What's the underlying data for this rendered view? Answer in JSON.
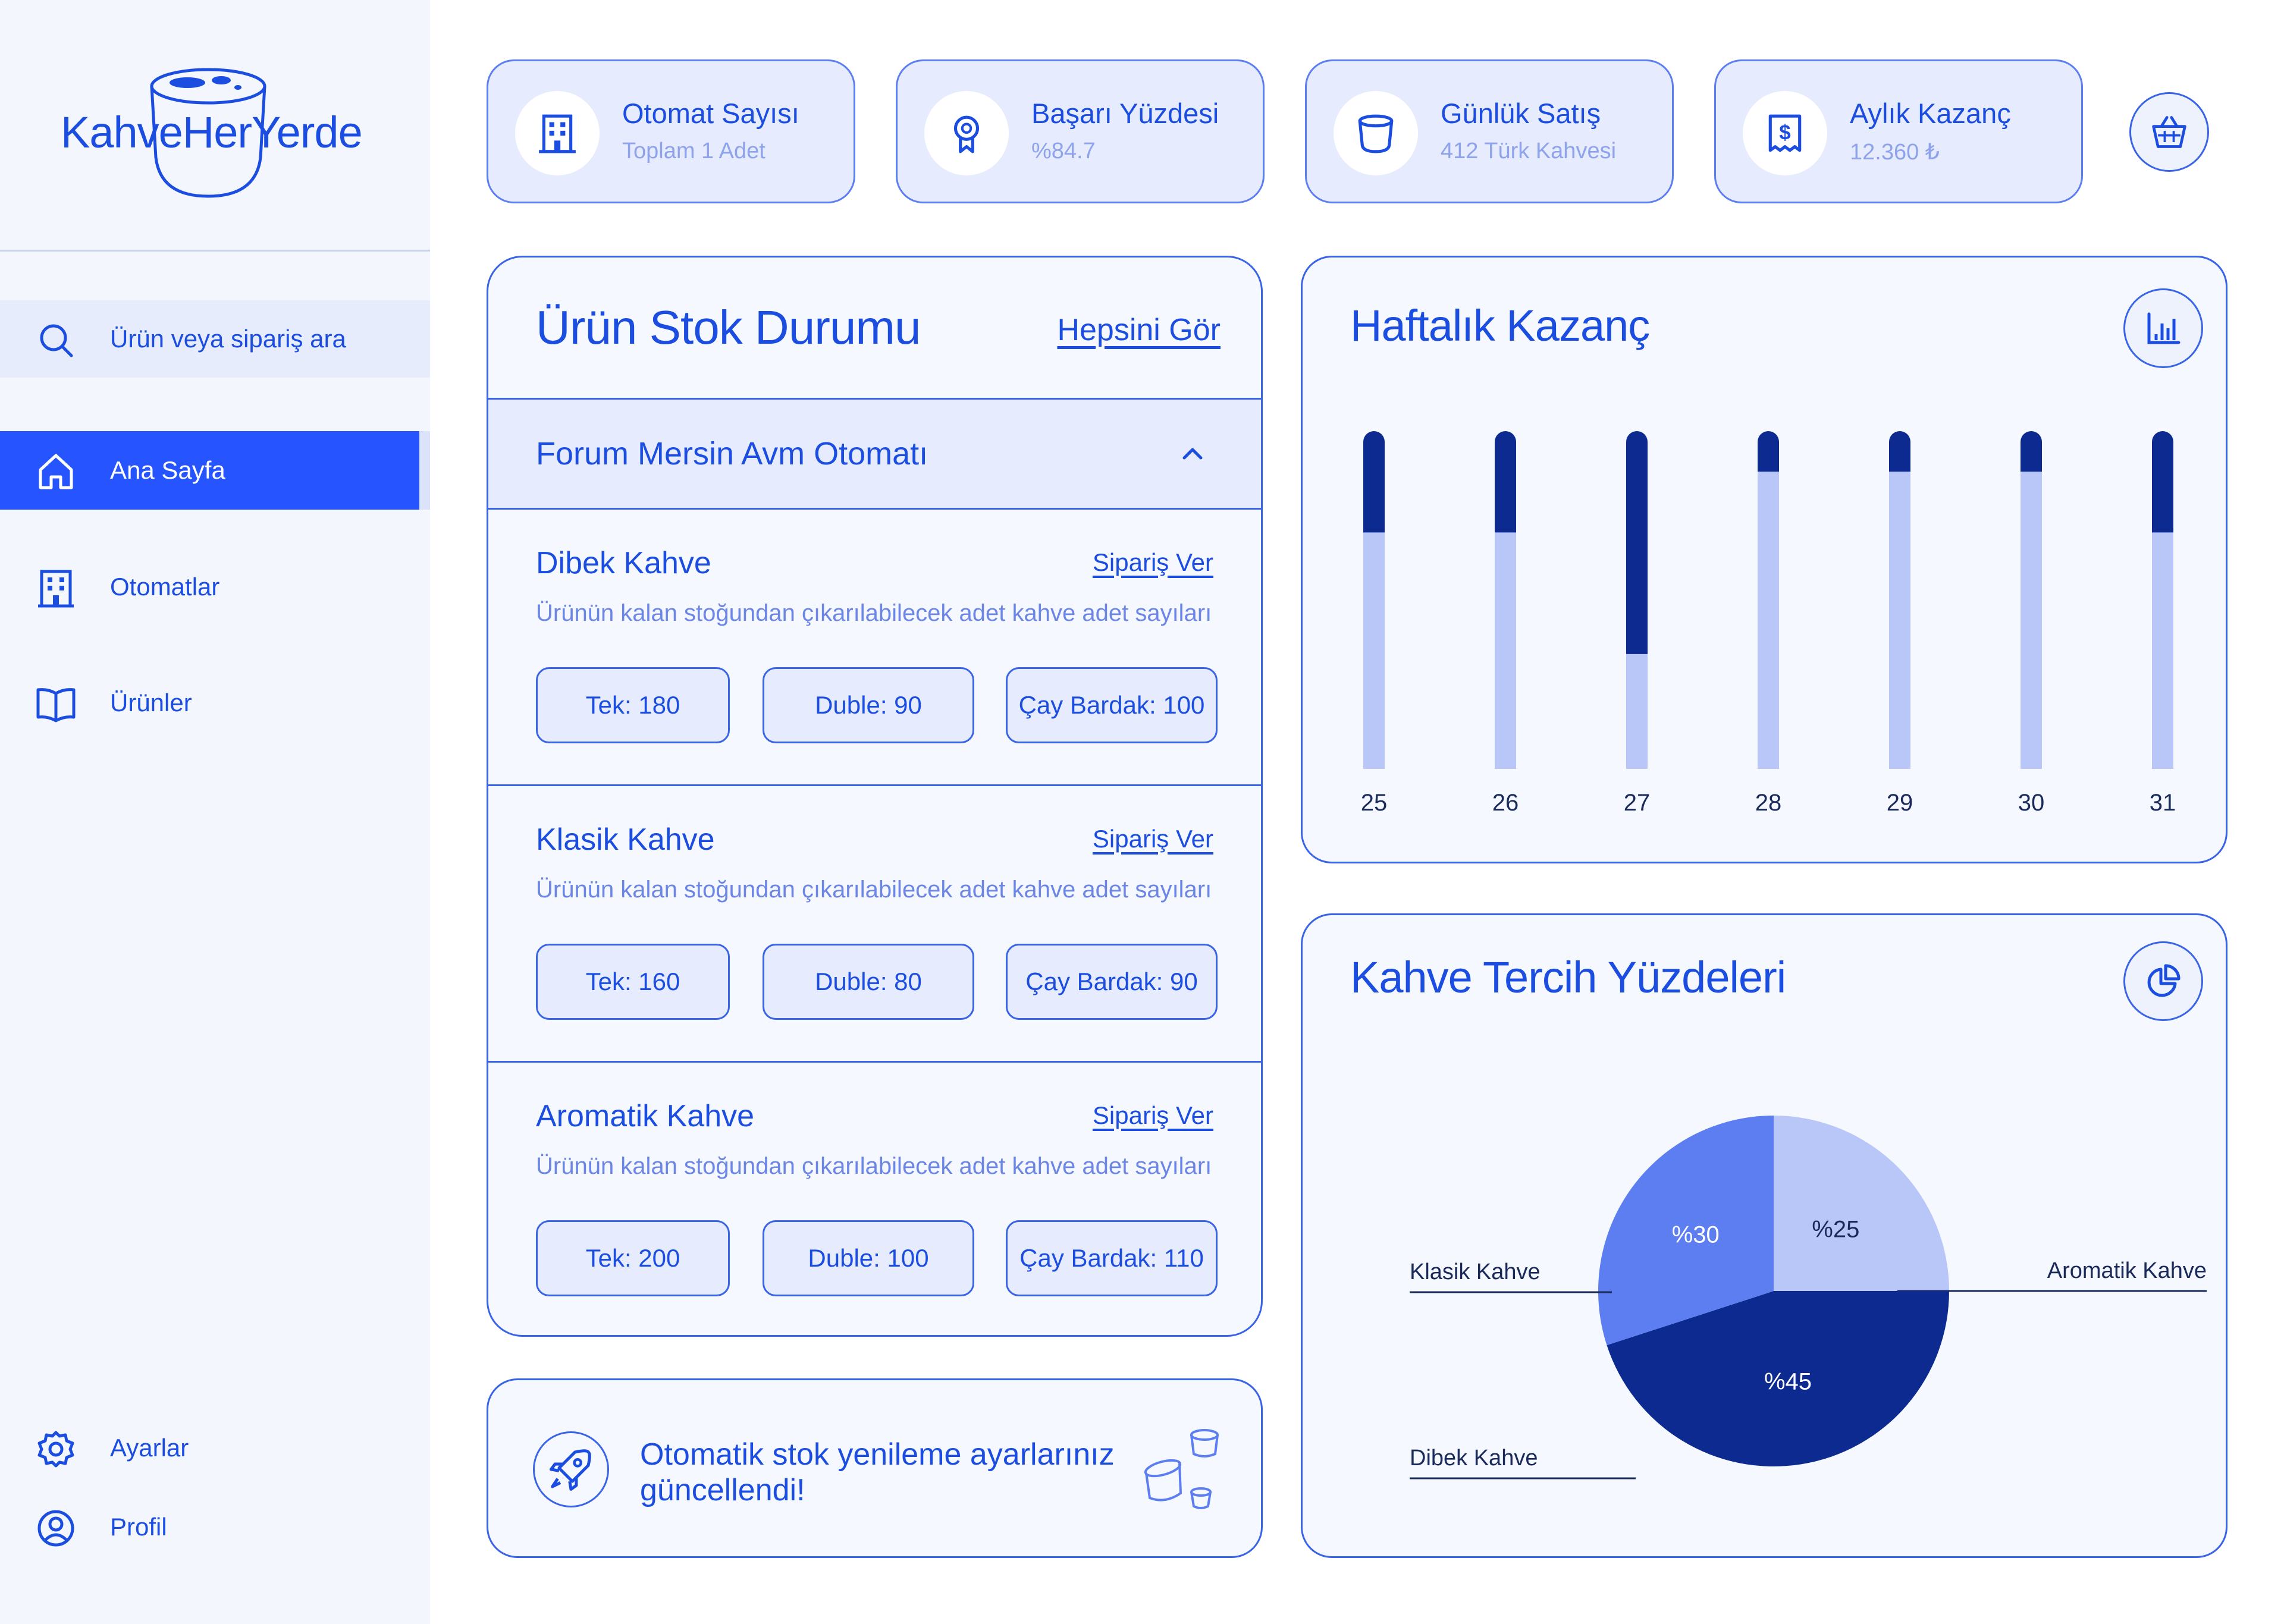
{
  "brand": {
    "logo_text": "KahveHerYerde"
  },
  "sidebar": {
    "search_placeholder": "Ürün veya sipariş ara",
    "nav": [
      {
        "label": "Ana Sayfa",
        "icon": "home-icon",
        "active": true
      },
      {
        "label": "Otomatlar",
        "icon": "building-icon",
        "active": false
      },
      {
        "label": "Ürünler",
        "icon": "book-icon",
        "active": false
      }
    ],
    "bottom": [
      {
        "label": "Ayarlar",
        "icon": "gear-icon"
      },
      {
        "label": "Profil",
        "icon": "user-icon"
      }
    ]
  },
  "stats": [
    {
      "title": "Otomat Sayısı",
      "subtitle": "Toplam 1 Adet",
      "icon": "building-icon"
    },
    {
      "title": "Başarı Yüzdesi",
      "subtitle": "%84.7",
      "icon": "award-icon"
    },
    {
      "title": "Günlük Satış",
      "subtitle": "412 Türk Kahvesi",
      "icon": "cup-icon"
    },
    {
      "title": "Aylık Kazanç",
      "subtitle": "12.360 ₺",
      "icon": "receipt-icon"
    }
  ],
  "stock": {
    "title": "Ürün Stok Durumu",
    "see_all": "Hepsini Gör",
    "machine": "Forum Mersin Avm Otomatı",
    "products": [
      {
        "name": "Dibek Kahve",
        "order": "Sipariş Ver",
        "desc": "Ürünün kalan stoğundan çıkarılabilecek adet kahve adet sayıları",
        "pills": [
          "Tek: 180",
          "Duble: 90",
          "Çay Bardak: 100"
        ]
      },
      {
        "name": "Klasik Kahve",
        "order": "Sipariş Ver",
        "desc": "Ürünün kalan stoğundan çıkarılabilecek adet kahve adet sayıları",
        "pills": [
          "Tek: 160",
          "Duble: 80",
          "Çay Bardak: 90"
        ]
      },
      {
        "name": "Aromatik Kahve",
        "order": "Sipariş Ver",
        "desc": "Ürünün kalan stoğundan çıkarılabilecek adet kahve adet sayıları",
        "pills": [
          "Tek: 200",
          "Duble: 100",
          "Çay Bardak: 110"
        ]
      }
    ]
  },
  "notification": {
    "text": "Otomatik stok yenileme ayarlarınız güncellendi!"
  },
  "weekly": {
    "title": "Haftalık Kazanç",
    "icon": "bar-chart-icon"
  },
  "preferences": {
    "title": "Kahve Tercih Yüzdeleri",
    "icon": "pie-chart-icon"
  },
  "colors": {
    "accent": "#2655ff",
    "primary_text": "#1b4ee0",
    "dark_blue": "#0c2a8f",
    "mid_blue": "#5c7ef0",
    "light_blue": "#b9c6f8",
    "card_bg": "#f6f8ff",
    "sidebar_bg": "#f3f6fd"
  },
  "chart_data": [
    {
      "type": "bar",
      "stacked": true,
      "title": "Haftalık Kazanç",
      "categories": [
        "25",
        "26",
        "27",
        "28",
        "29",
        "30",
        "31"
      ],
      "series": [
        {
          "values": [
            0.3,
            0.3,
            0.66,
            0.12,
            0.12,
            0.12,
            0.3
          ]
        },
        {
          "values": [
            0.7,
            0.7,
            0.34,
            0.88,
            0.88,
            0.88,
            0.7
          ]
        }
      ],
      "ylim": [
        0,
        1
      ],
      "grid": false
    },
    {
      "type": "pie",
      "title": "Kahve Tercih Yüzdeleri",
      "slices": [
        {
          "label": "Aromatik Kahve",
          "value": 25,
          "display": "%25"
        },
        {
          "label": "Dibek Kahve",
          "value": 45,
          "display": "%45"
        },
        {
          "label": "Klasik Kahve",
          "value": 30,
          "display": "%30"
        }
      ]
    }
  ]
}
